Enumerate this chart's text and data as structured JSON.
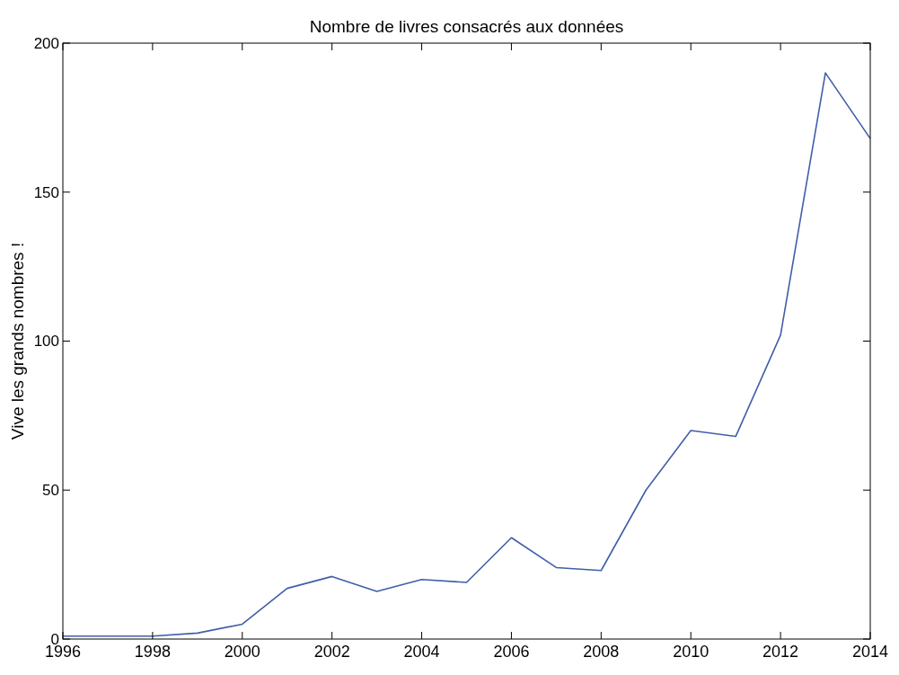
{
  "chart_data": {
    "type": "line",
    "title": "Nombre de livres consacrés aux données",
    "ylabel": "Vive les grands nombres !",
    "x": [
      1996,
      1997,
      1998,
      1999,
      2000,
      2001,
      2002,
      2003,
      2004,
      2005,
      2006,
      2007,
      2008,
      2009,
      2010,
      2011,
      2012,
      2013,
      2014
    ],
    "series": [
      {
        "color": "#3f5fa8",
        "values": [
          1,
          1,
          1,
          2,
          5,
          17,
          21,
          16,
          20,
          19,
          34,
          24,
          23,
          50,
          70,
          68,
          102,
          190,
          168
        ]
      }
    ],
    "xlim": [
      1996,
      2014
    ],
    "xticks": [
      1996,
      1998,
      2000,
      2002,
      2004,
      2006,
      2008,
      2010,
      2012,
      2014
    ],
    "ylim": [
      0,
      200
    ],
    "yticks": [
      0,
      50,
      100,
      150,
      200
    ]
  }
}
